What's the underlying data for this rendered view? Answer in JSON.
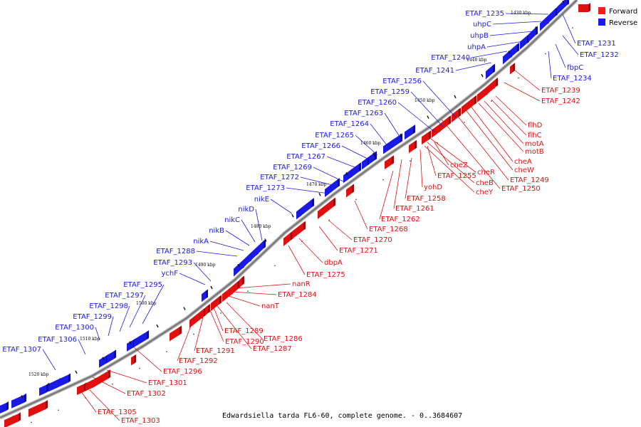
{
  "caption": "Edwardsiella tarda FL6-60, complete genome. - 0..3684607",
  "legend": [
    {
      "label": "Forward",
      "color": "#ff0000"
    },
    {
      "label": "Reverse",
      "color": "#0000ff"
    }
  ],
  "colors": {
    "forward": "#e01010",
    "reverse": "#1a1ae6",
    "backbone": "#7a7a7a"
  },
  "ticks": [
    "1430 kbp",
    "1440 kbp",
    "1450 kbp",
    "1460 kbp",
    "1470 kbp",
    "1480 kbp",
    "1490 kbp",
    "1500 kbp",
    "1510 kbp",
    "1520 kbp"
  ],
  "reverse_labels": [
    "ETAF_1235",
    "uhpC",
    "uhpB",
    "uhpA",
    "ETAF_1240",
    "ETAF_1241",
    "ETAF_1256",
    "ETAF_1259",
    "ETAF_1260",
    "ETAF_1263",
    "ETAF_1264",
    "ETAF_1265",
    "ETAF_1266",
    "ETAF_1267",
    "ETAF_1269",
    "ETAF_1272",
    "ETAF_1273",
    "nikE",
    "nikD",
    "nikC",
    "nikB",
    "nikA",
    "ETAF_1288",
    "ETAF_1293",
    "ychF",
    "ETAF_1295",
    "ETAF_1297",
    "ETAF_1298",
    "ETAF_1299",
    "ETAF_1300",
    "ETAF_1306",
    "ETAF_1307",
    "ETAF_1231",
    "ETAF_1232",
    "fbpC",
    "ETAF_1234"
  ],
  "forward_labels": [
    "ETAF_1239",
    "ETAF_1242",
    "flhD",
    "flhC",
    "motA",
    "motB",
    "cheA",
    "cheW",
    "ETAF_1249",
    "ETAF_1250",
    "cheR",
    "cheB",
    "cheY",
    "cheZ",
    "ETAF_1255",
    "yohD",
    "ETAF_1258",
    "ETAF_1261",
    "ETAF_1262",
    "ETAF_1268",
    "ETAF_1270",
    "ETAF_1271",
    "dbpA",
    "ETAF_1275",
    "nanR",
    "ETAF_1284",
    "nanT",
    "ETAF_1286",
    "ETAF_1287",
    "ETAF_1289",
    "ETAF_1290",
    "ETAF_1291",
    "ETAF_1292",
    "ETAF_1296",
    "ETAF_1301",
    "ETAF_1302",
    "ETAF_1305",
    "ETAF_1303"
  ]
}
